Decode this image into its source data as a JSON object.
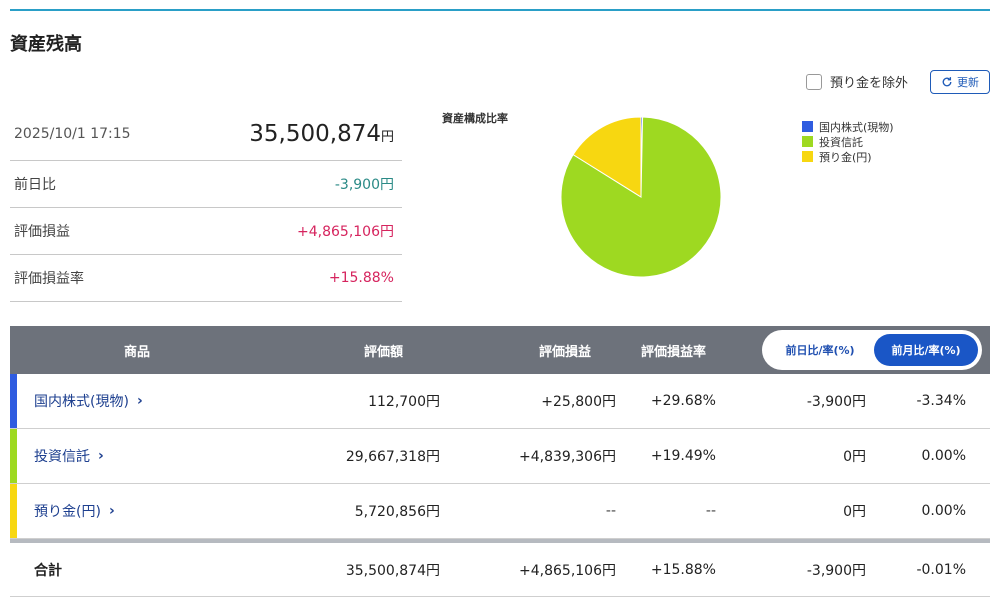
{
  "title": "資産残高",
  "controls": {
    "exclude_deposit_label": "預り金を除外",
    "refresh_label": "更新"
  },
  "summary": {
    "datetime": "2025/10/1 17:15",
    "total_value": "35,500,874",
    "total_unit": "円",
    "rows": [
      {
        "label": "前日比",
        "value": "-3,900円"
      },
      {
        "label": "評価損益",
        "value": "+4,865,106円"
      },
      {
        "label": "評価損益率",
        "value": "+15.88%"
      }
    ]
  },
  "chart_data": {
    "type": "pie",
    "title": "資産構成比率",
    "categories": [
      "国内株式(現物)",
      "投資信託",
      "預り金(円)"
    ],
    "values": [
      112700,
      29667318,
      5720856
    ],
    "colors": [
      "#2f5ce0",
      "#9ed921",
      "#f7d711"
    ],
    "legend_position": "right"
  },
  "table": {
    "headers": {
      "product": "商品",
      "value": "評価額",
      "pl": "評価損益",
      "pl_rate": "評価損益率"
    },
    "toggle": {
      "options": [
        "前日比/率(%)",
        "前月比/率(%)"
      ],
      "selected": "前月比/率(%)"
    },
    "rows": [
      {
        "name": "国内株式(現物)",
        "value": "112,700円",
        "pl": "+25,800円",
        "pl_rate": "+29.68%",
        "diff": "-3,900円",
        "diff_rate": "-3.34%",
        "color": "#2f5ce0"
      },
      {
        "name": "投資信託",
        "value": "29,667,318円",
        "pl": "+4,839,306円",
        "pl_rate": "+19.49%",
        "diff": "0円",
        "diff_rate": "0.00%",
        "color": "#9ed921"
      },
      {
        "name": "預り金(円)",
        "value": "5,720,856円",
        "pl": "--",
        "pl_rate": "--",
        "diff": "0円",
        "diff_rate": "0.00%",
        "color": "#f7d711"
      }
    ],
    "total": {
      "label": "合計",
      "value": "35,500,874円",
      "pl": "+4,865,106円",
      "pl_rate": "+15.88%",
      "diff": "-3,900円",
      "diff_rate": "-0.01%"
    }
  },
  "icons": {
    "refresh": "refresh-icon",
    "chevron": "chevron-right-icon"
  }
}
